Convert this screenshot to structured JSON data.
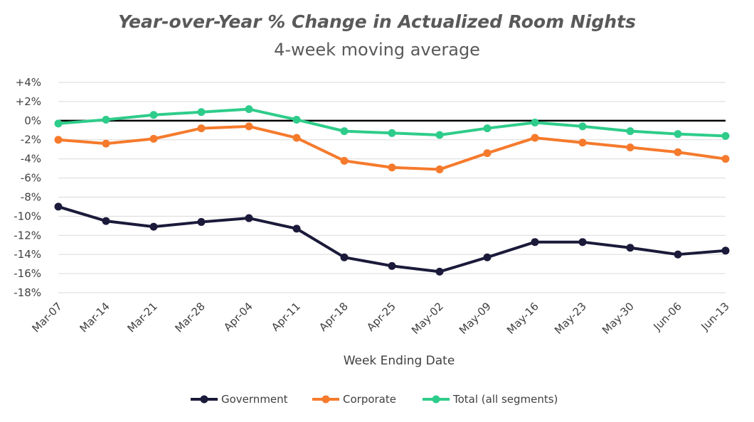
{
  "chart_data": {
    "type": "line",
    "title": "Year-over-Year % Change in Actualized Room Nights",
    "subtitle": "4-week moving average",
    "xlabel": "Week Ending Date",
    "ylabel": "",
    "categories": [
      "Mar-07",
      "Mar-14",
      "Mar-21",
      "Mar-28",
      "Apr-04",
      "Apr-11",
      "Apr-18",
      "Apr-25",
      "May-02",
      "May-09",
      "May-16",
      "May-23",
      "May-30",
      "Jun-06",
      "Jun-13"
    ],
    "ylim": [
      -18,
      4
    ],
    "y_ticks": [
      4,
      2,
      0,
      -2,
      -4,
      -6,
      -8,
      -10,
      -12,
      -14,
      -16,
      -18
    ],
    "y_tick_labels": [
      "+4%",
      "+2%",
      "0%",
      "-2%",
      "-4%",
      "-6%",
      "-8%",
      "-10%",
      "-12%",
      "-14%",
      "-16%",
      "-18%"
    ],
    "grid": true,
    "legend_position": "bottom",
    "series": [
      {
        "name": "Government",
        "color": "#1b1a3a",
        "values": [
          -9.0,
          -10.5,
          -11.1,
          -10.6,
          -10.2,
          -11.3,
          -14.3,
          -15.2,
          -15.8,
          -14.3,
          -12.7,
          -12.7,
          -13.3,
          -14.0,
          -13.6
        ]
      },
      {
        "name": "Corporate",
        "color": "#f57a2c",
        "values": [
          -2.0,
          -2.4,
          -1.9,
          -0.8,
          -0.6,
          -1.8,
          -4.2,
          -4.9,
          -5.1,
          -3.4,
          -1.8,
          -2.3,
          -2.8,
          -3.3,
          -4.0
        ]
      },
      {
        "name": "Total (all segments)",
        "color": "#2ecc8a",
        "values": [
          -0.3,
          0.1,
          0.6,
          0.9,
          1.2,
          0.1,
          -1.1,
          -1.3,
          -1.5,
          -0.8,
          -0.2,
          -0.6,
          -1.1,
          -1.4,
          -1.6
        ]
      }
    ]
  }
}
